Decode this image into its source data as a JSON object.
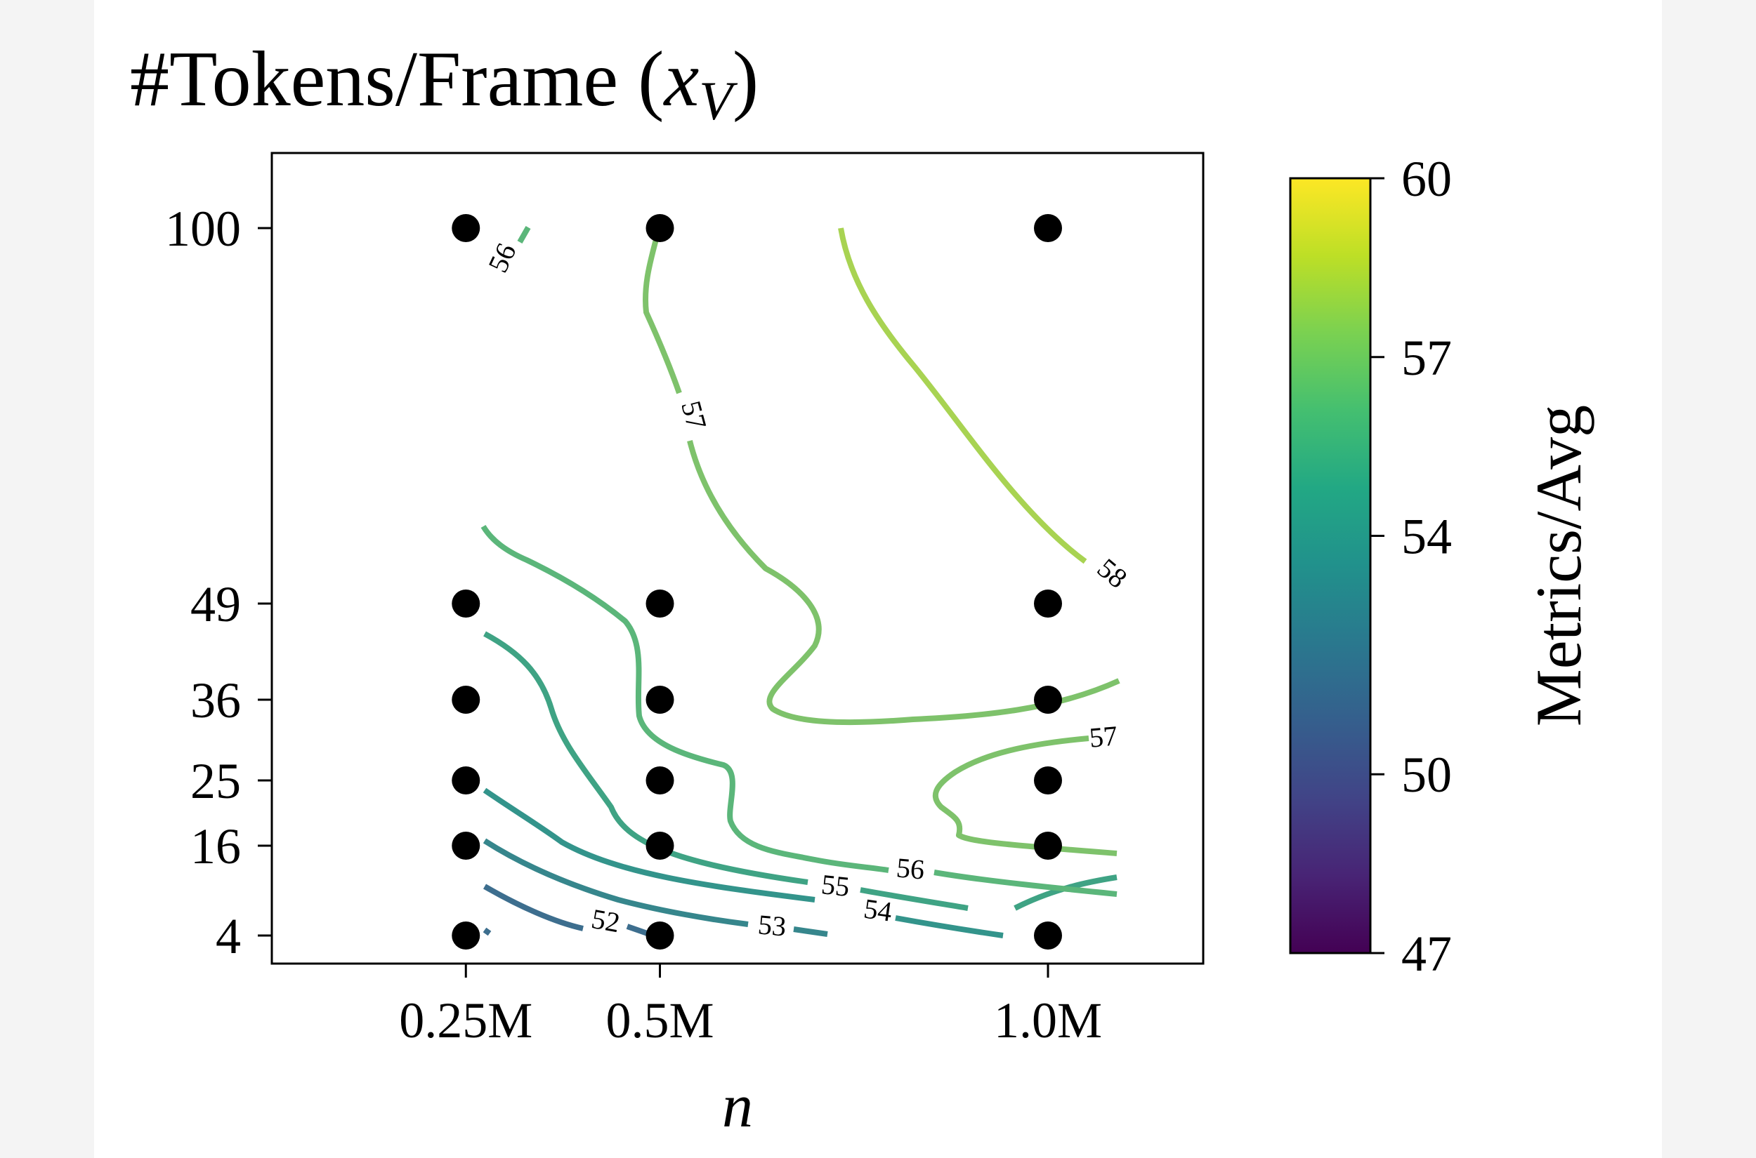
{
  "chart_data": {
    "type": "contour",
    "title": "#Tokens/Frame (",
    "title_var": "x",
    "title_sub": "V",
    "title_end": ")",
    "xlabel": "n",
    "ylabel": "",
    "x_ticks": [
      {
        "label": "0.25M",
        "value": 0.25
      },
      {
        "label": "0.5M",
        "value": 0.5
      },
      {
        "label": "1.0M",
        "value": 1.0
      }
    ],
    "y_ticks": [
      {
        "label": "4",
        "value": 4
      },
      {
        "label": "16",
        "value": 16
      },
      {
        "label": "25",
        "value": 25
      },
      {
        "label": "36",
        "value": 36
      },
      {
        "label": "49",
        "value": 49
      },
      {
        "label": "100",
        "value": 100
      }
    ],
    "xlim": [
      0.0,
      1.2
    ],
    "grid": false,
    "points": [
      {
        "x": 0.25,
        "y": 4
      },
      {
        "x": 0.25,
        "y": 16
      },
      {
        "x": 0.25,
        "y": 25
      },
      {
        "x": 0.25,
        "y": 36
      },
      {
        "x": 0.25,
        "y": 49
      },
      {
        "x": 0.25,
        "y": 100
      },
      {
        "x": 0.5,
        "y": 4
      },
      {
        "x": 0.5,
        "y": 16
      },
      {
        "x": 0.5,
        "y": 25
      },
      {
        "x": 0.5,
        "y": 36
      },
      {
        "x": 0.5,
        "y": 49
      },
      {
        "x": 0.5,
        "y": 100
      },
      {
        "x": 1.0,
        "y": 4
      },
      {
        "x": 1.0,
        "y": 16
      },
      {
        "x": 1.0,
        "y": 25
      },
      {
        "x": 1.0,
        "y": 36
      },
      {
        "x": 1.0,
        "y": 49
      },
      {
        "x": 1.0,
        "y": 100
      }
    ],
    "contour_levels": [
      {
        "level": 52,
        "label": "52",
        "color": "#3d6e8e"
      },
      {
        "level": 53,
        "label": "53",
        "color": "#36868c"
      },
      {
        "level": 54,
        "label": "54",
        "color": "#33948b"
      },
      {
        "level": 55,
        "label": "55",
        "color": "#3fa384"
      },
      {
        "level": 56,
        "label": "56",
        "color": "#5bb67a"
      },
      {
        "level": 57,
        "label": "57",
        "color": "#7ec26b"
      },
      {
        "level": 58,
        "label": "58",
        "color": "#a8d352"
      }
    ],
    "colorbar": {
      "label": "Metrics/Avg",
      "min": 47,
      "max": 60,
      "ticks": [
        {
          "label": "60",
          "value": 60
        },
        {
          "label": "57",
          "value": 57
        },
        {
          "label": "54",
          "value": 54
        },
        {
          "label": "50",
          "value": 50
        },
        {
          "label": "47",
          "value": 47
        }
      ]
    }
  }
}
